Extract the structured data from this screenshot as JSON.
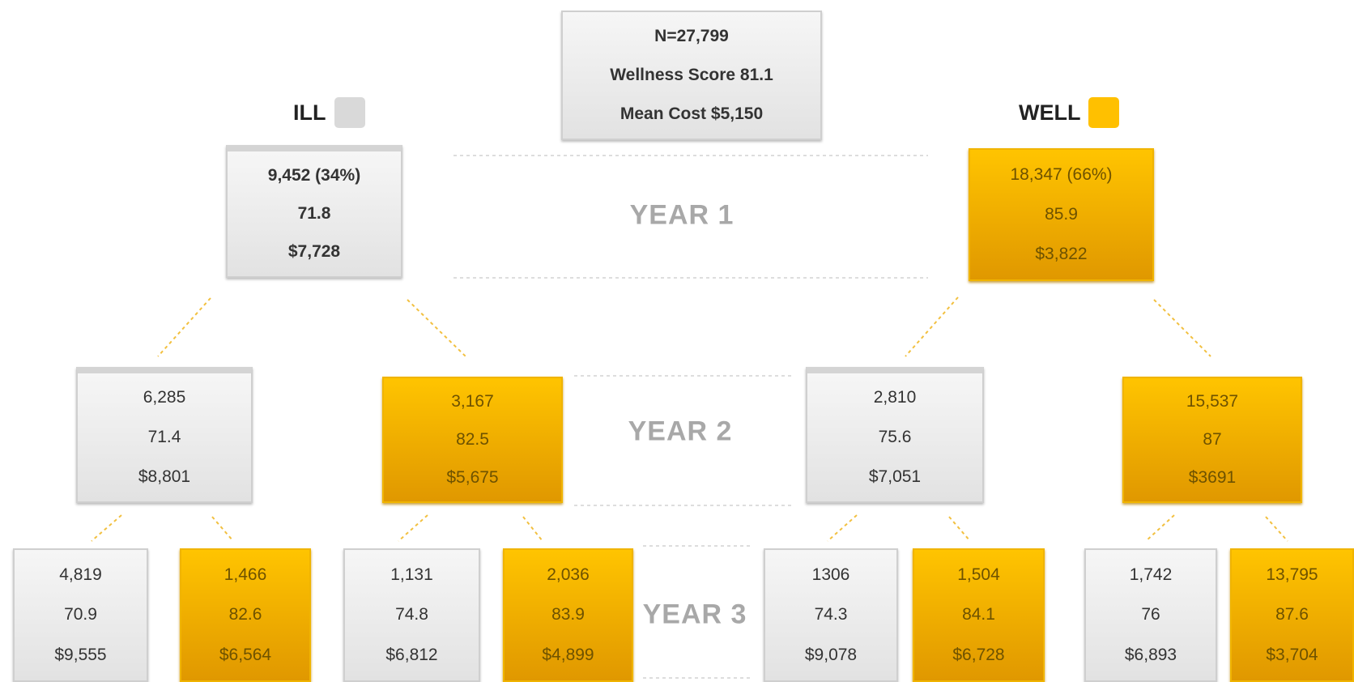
{
  "root": {
    "lines": [
      "N=27,799",
      "Wellness Score 81.1",
      "Mean Cost $5,150"
    ]
  },
  "legend": [
    {
      "label": "ILL",
      "color": "#d9d9d9"
    },
    {
      "label": "WELL",
      "color": "#ffc000"
    }
  ],
  "years": [
    "YEAR 1",
    "YEAR 2",
    "YEAR 3"
  ],
  "nodes": [
    {
      "color": "gray",
      "lines": [
        "9,452 (34%)",
        "71.8",
        "$7,728"
      ]
    },
    {
      "color": "orange",
      "lines": [
        "18,347 (66%)",
        "85.9",
        "$3,822"
      ]
    },
    {
      "color": "gray",
      "lines": [
        "6,285",
        "71.4",
        "$8,801"
      ]
    },
    {
      "color": "orange",
      "lines": [
        "3,167",
        "82.5",
        "$5,675"
      ]
    },
    {
      "color": "gray",
      "lines": [
        "2,810",
        "75.6",
        "$7,051"
      ]
    },
    {
      "color": "orange",
      "lines": [
        "15,537",
        "87",
        "$3691"
      ]
    },
    {
      "color": "gray",
      "lines": [
        "4,819",
        "70.9",
        "$9,555"
      ]
    },
    {
      "color": "orange",
      "lines": [
        "1,466",
        "82.6",
        "$6,564"
      ]
    },
    {
      "color": "gray",
      "lines": [
        "1,131",
        "74.8",
        "$6,812"
      ]
    },
    {
      "color": "orange",
      "lines": [
        "2,036",
        "83.9",
        "$4,899"
      ]
    },
    {
      "color": "gray",
      "lines": [
        "1306",
        "74.3",
        "$9,078"
      ]
    },
    {
      "color": "orange",
      "lines": [
        "1,504",
        "84.1",
        "$6,728"
      ]
    },
    {
      "color": "gray",
      "lines": [
        "1,742",
        "76",
        "$6,893"
      ]
    },
    {
      "color": "orange",
      "lines": [
        "13,795",
        "87.6",
        "$3,704"
      ]
    }
  ]
}
